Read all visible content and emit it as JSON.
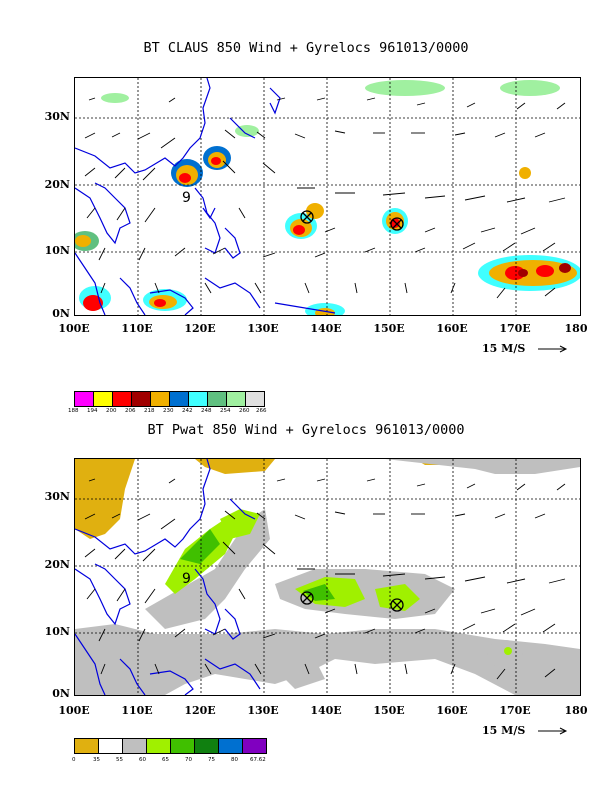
{
  "panels": [
    {
      "title": "BT CLAUS 850 Wind + Gyrelocs 961013/0000",
      "y_ticks": [
        "30N",
        "20N",
        "10N",
        "0N"
      ],
      "x_ticks": [
        "100E",
        "110E",
        "120E",
        "130E",
        "140E",
        "150E",
        "160E",
        "170E",
        "180"
      ],
      "scale_label": "15 M/S",
      "colorbar_labels": [
        "188",
        "194",
        "200",
        "206",
        "218",
        "230",
        "242",
        "248",
        "254",
        "260",
        "266"
      ],
      "colorbar_colors": [
        "#ff00ff",
        "#ffff00",
        "#ff0000",
        "#a00000",
        "#f0b000",
        "#0070d0",
        "#40ffff",
        "#60c080",
        "#a0f0a0",
        "#e0e0e0"
      ],
      "storm_marker": "9"
    },
    {
      "title": "BT Pwat 850 Wind + Gyrelocs 961013/0000",
      "y_ticks": [
        "30N",
        "20N",
        "10N",
        "0N"
      ],
      "x_ticks": [
        "100E",
        "110E",
        "120E",
        "130E",
        "140E",
        "150E",
        "160E",
        "170E",
        "180"
      ],
      "scale_label": "15 M/S",
      "colorbar_labels": [
        "0",
        "35",
        "55",
        "60",
        "65",
        "70",
        "75",
        "80",
        "67.62"
      ],
      "colorbar_colors": [
        "#e0b010",
        "#ffffff",
        "#bfbfbf",
        "#a0f000",
        "#40c000",
        "#108010",
        "#0070d0",
        "#8000c0"
      ],
      "storm_marker": "9"
    }
  ]
}
